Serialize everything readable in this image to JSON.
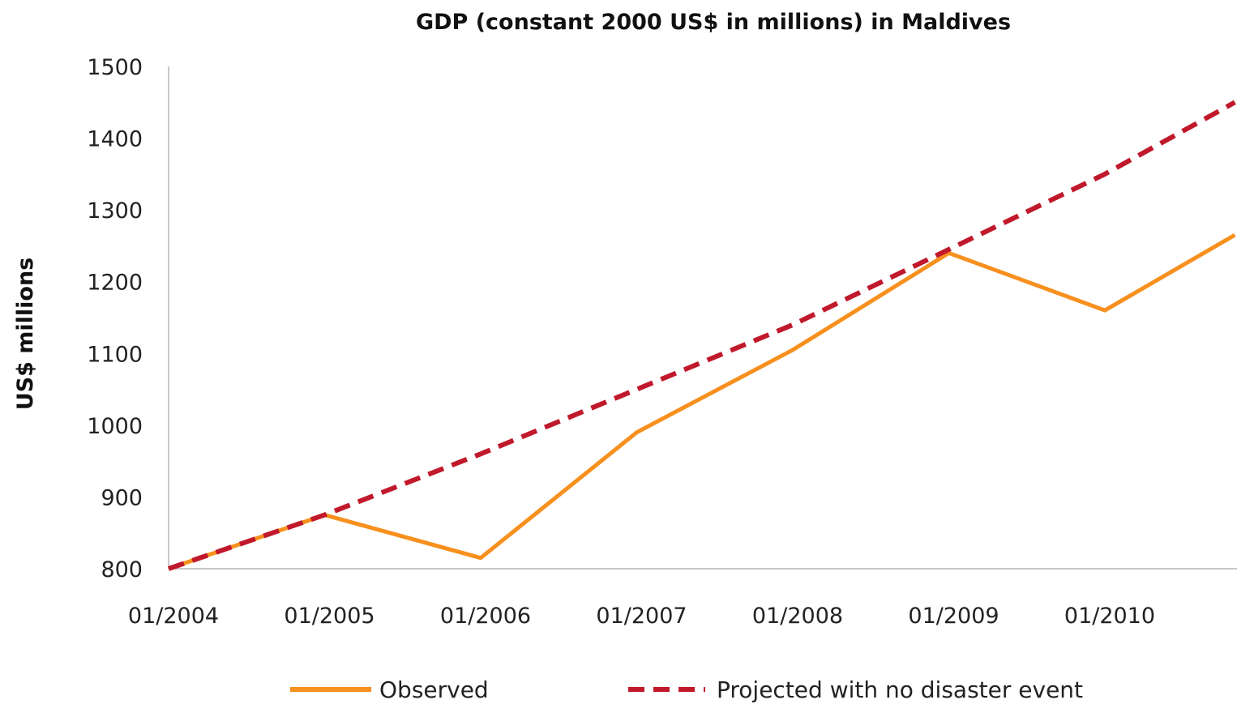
{
  "chart_data": {
    "type": "line",
    "title": "GDP (constant 2000 US$ in millions) in Maldives",
    "xlabel": "",
    "ylabel": "US$ millions",
    "x_tick_labels": [
      "01/2004",
      "01/2005",
      "01/2006",
      "01/2007",
      "01/2008",
      "01/2009",
      "01/2010"
    ],
    "x_range": [
      "01/2004",
      "11/2010"
    ],
    "ylim": [
      800,
      1500
    ],
    "y_ticks": [
      800,
      900,
      1000,
      1100,
      1200,
      1300,
      1400,
      1500
    ],
    "grid": false,
    "legend_position": "bottom",
    "series": [
      {
        "name": "Observed",
        "color": "#f7901e",
        "style": "solid",
        "x": [
          "01/2004",
          "01/2005",
          "01/2006",
          "01/2007",
          "01/2008",
          "01/2009",
          "01/2010",
          "11/2010"
        ],
        "y": [
          800,
          875,
          815,
          990,
          1105,
          1240,
          1160,
          1265
        ]
      },
      {
        "name": "Projected with no disaster event",
        "color": "#c0192b",
        "style": "dashed",
        "x": [
          "01/2004",
          "01/2005",
          "01/2006",
          "01/2007",
          "01/2008",
          "01/2009",
          "01/2010",
          "11/2010"
        ],
        "y": [
          800,
          875,
          960,
          1050,
          1140,
          1245,
          1350,
          1450
        ]
      }
    ]
  }
}
